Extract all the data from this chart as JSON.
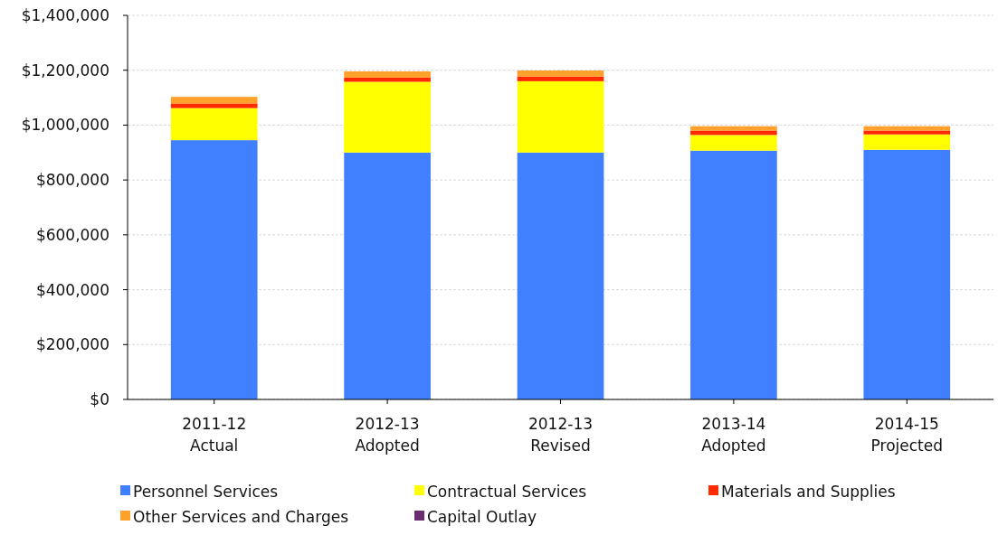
{
  "chart_data": {
    "type": "bar",
    "stacked": true,
    "categories": [
      "2011-12\nActual",
      "2012-13\nAdopted",
      "2012-13\nRevised",
      "2013-14\nAdopted",
      "2014-15\nProjected"
    ],
    "series": [
      {
        "name": "Personnel Services",
        "color": "#4080ff",
        "values": [
          945000,
          900000,
          900000,
          907000,
          910000
        ]
      },
      {
        "name": "Contractual Services",
        "color": "#ffff00",
        "values": [
          117000,
          258000,
          260000,
          57000,
          56000
        ]
      },
      {
        "name": "Materials and Supplies",
        "color": "#ff2a00",
        "values": [
          17000,
          15000,
          17000,
          16000,
          14000
        ]
      },
      {
        "name": "Other Services and Charges",
        "color": "#ffa12a",
        "values": [
          24000,
          23000,
          22000,
          16000,
          16000
        ]
      },
      {
        "name": "Capital Outlay",
        "color": "#6a2c70",
        "values": [
          0,
          0,
          0,
          0,
          0
        ]
      }
    ],
    "ylim": [
      0,
      1400000
    ],
    "yticks": [
      {
        "value": 0,
        "label": "$0"
      },
      {
        "value": 200000,
        "label": "$200,000"
      },
      {
        "value": 400000,
        "label": "$400,000"
      },
      {
        "value": 600000,
        "label": "$600,000"
      },
      {
        "value": 800000,
        "label": "$800,000"
      },
      {
        "value": 1000000,
        "label": "$1,000,000"
      },
      {
        "value": 1200000,
        "label": "$1,200,000"
      },
      {
        "value": 1400000,
        "label": "$1,400,000"
      }
    ],
    "grid": "y",
    "legend": "bottom"
  }
}
